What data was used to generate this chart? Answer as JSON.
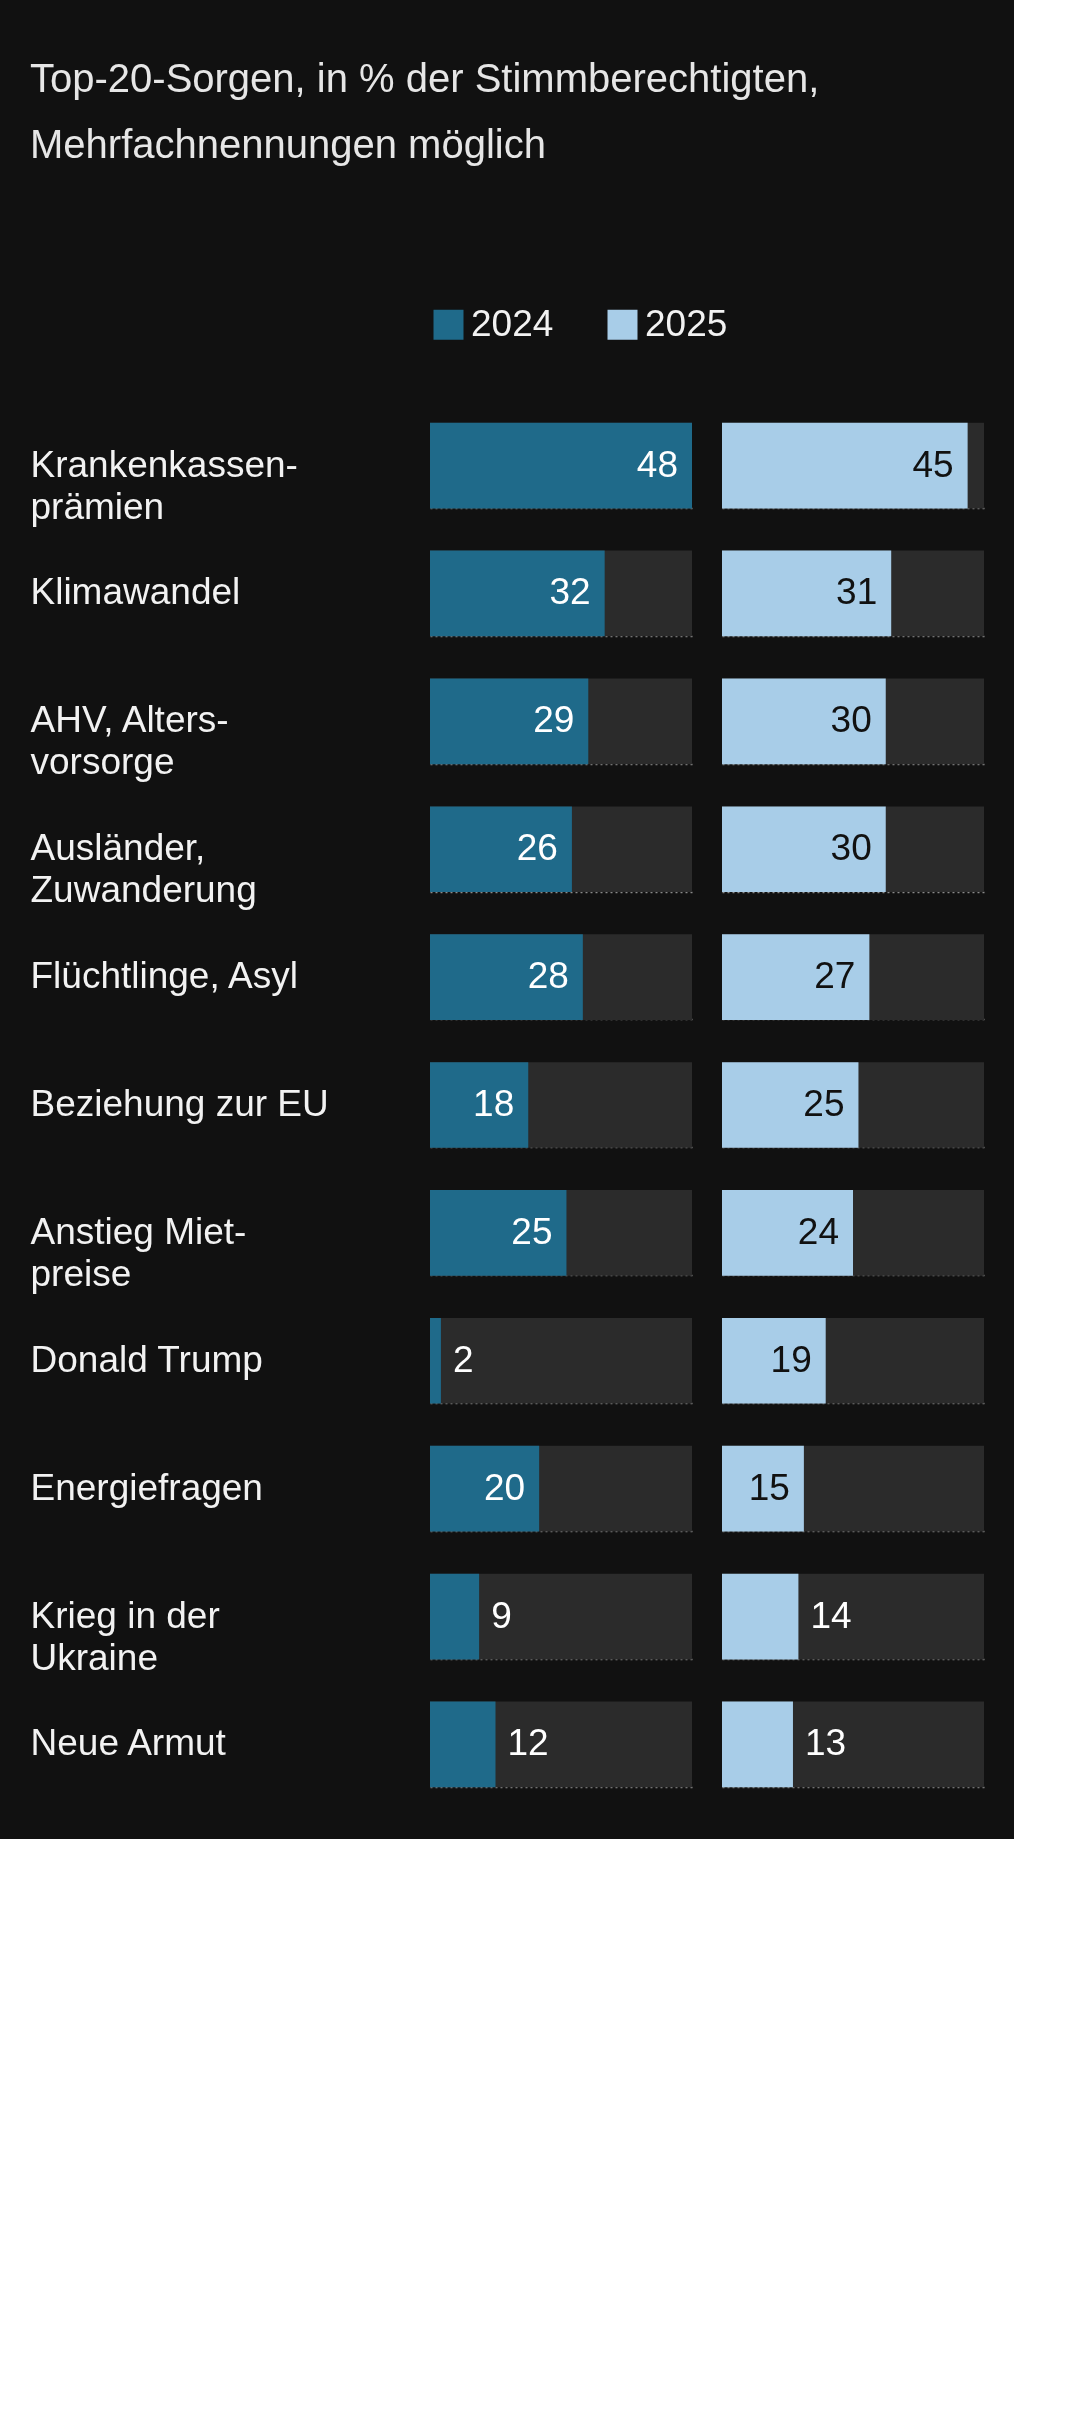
{
  "chart_data": [
    {
      "type": "bar",
      "orientation": "horizontal",
      "title": "Top-20-Sorgen, in % der Stimmberechtigten, Mehrfachnennungen möglich",
      "categories": [
        "Krankenkassen-\nprämien",
        "Klimawandel",
        "AHV, Alters-\nvorsorge",
        "Ausländer,\nZuwanderung",
        "Flüchtlinge, Asyl",
        "Beziehung zur EU",
        "Anstieg Miet-\npreise",
        "Donald Trump",
        "Energiefragen",
        "Krieg in der\nUkraine",
        "Neue Armut"
      ],
      "series": [
        {
          "name": "2024",
          "color": "#1f6a8a",
          "values": [
            48,
            32,
            29,
            26,
            28,
            18,
            25,
            2,
            20,
            9,
            12
          ]
        }
      ],
      "xlim": [
        0,
        48
      ],
      "data_labels": true,
      "legend": "top left",
      "grid": "y"
    },
    {
      "type": "bar",
      "orientation": "horizontal",
      "categories": [
        null,
        null,
        null,
        null,
        null,
        null,
        null,
        null,
        null,
        null,
        null
      ],
      "series": [
        {
          "name": "2025",
          "color": "#a8cde8",
          "values": [
            45,
            31,
            30,
            30,
            27,
            25,
            24,
            19,
            15,
            14,
            13
          ]
        }
      ],
      "xlim": [
        0,
        48
      ],
      "data_labels": true,
      "grid": "y",
      "tick_labels": false
    }
  ]
}
